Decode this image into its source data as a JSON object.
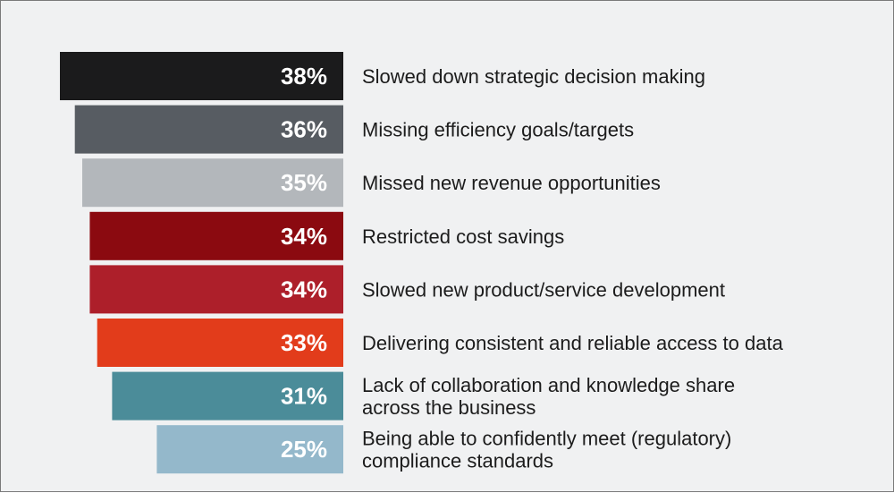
{
  "chart_data": {
    "type": "bar",
    "orientation": "horizontal",
    "categories": [
      [
        "Slowed down strategic decision making"
      ],
      [
        "Missing efficiency goals/targets"
      ],
      [
        "Missed new revenue opportunities"
      ],
      [
        "Restricted cost savings"
      ],
      [
        "Slowed new product/service development"
      ],
      [
        "Delivering consistent and reliable access to data"
      ],
      [
        "Lack of collaboration and knowledge share",
        "across the business"
      ],
      [
        "Being able to confidently meet (regulatory)",
        "compliance standards"
      ]
    ],
    "values": [
      38,
      36,
      35,
      34,
      34,
      33,
      31,
      25
    ],
    "value_labels": [
      "38%",
      "36%",
      "35%",
      "34%",
      "34%",
      "33%",
      "31%",
      "25%"
    ],
    "unit": "%",
    "colors": [
      "#1b1b1c",
      "#575c62",
      "#b3b7bb",
      "#8b0a10",
      "#ad1f2a",
      "#e23c1b",
      "#4b8c99",
      "#94b8cb"
    ],
    "bars_right_aligned": true,
    "grid": false,
    "legend": false
  }
}
